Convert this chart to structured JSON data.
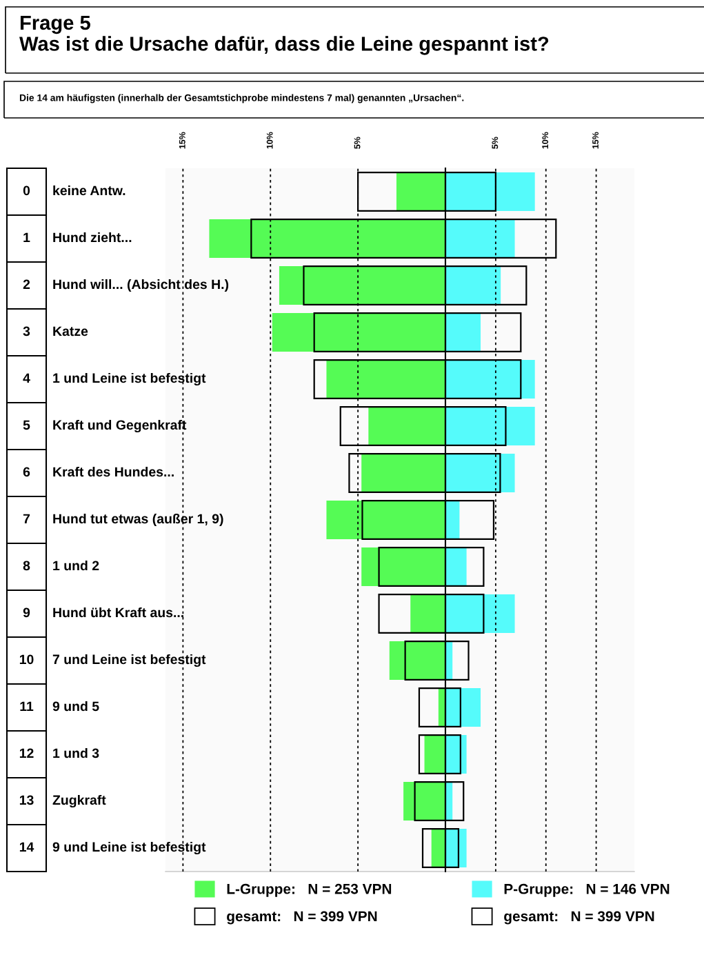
{
  "chart_data": [
    {
      "type": "bar",
      "orientation": "horizontal",
      "title": "Frage 5\nWas ist die Ursache dafür, dass die Leine gespannt ist?",
      "subtitle": "Die 14 am häufigsten (innerhalb der Gesamtstichprobe mindestens 7 mal) genannten „Ursachen“.",
      "categories": [
        "0 keine Antw.",
        "1 Hund zieht...",
        "2 Hund will... (Absicht des H.)",
        "3 Katze",
        "4 1 und Leine ist befestigt",
        "5 Kraft und Gegenkraft",
        "6 Kraft des Hundes...",
        "7 Hund tut etwas (außer 1, 9)",
        "8 1 und 2",
        "9 Hund übt Kraft aus...",
        "10 7 und Leine ist befestigt",
        "11 9 und 5",
        "12 1 und 3",
        "13 Zugkraft",
        "14 9 und Leine ist befestigt"
      ],
      "series": [
        {
          "name": "L-Gruppe:   N = 253 VPN",
          "color": "#55fb55",
          "values": [
            2.8,
            13.5,
            9.5,
            9.9,
            6.8,
            4.4,
            4.8,
            6.8,
            4.8,
            2.0,
            3.2,
            0.4,
            1.2,
            2.4,
            0.8
          ]
        },
        {
          "name": "gesamt:   N = 399 VPN",
          "color": "#000000",
          "values": [
            5.0,
            11.1,
            8.1,
            7.5,
            7.5,
            6.0,
            5.5,
            4.75,
            3.8,
            3.8,
            2.3,
            1.5,
            1.5,
            1.75,
            1.3
          ]
        }
      ],
      "xlim": [
        16,
        0
      ],
      "xticks": [
        {
          "value": 15,
          "label": "15%"
        },
        {
          "value": 10,
          "label": "10%"
        },
        {
          "value": 5,
          "label": "5%"
        }
      ],
      "grid": "x",
      "legend": "bottom"
    },
    {
      "type": "bar",
      "orientation": "horizontal",
      "categories": [
        null,
        null,
        null,
        null,
        null,
        null,
        null,
        null,
        null,
        null,
        null,
        null,
        null,
        null,
        null
      ],
      "series": [
        {
          "name": "P-Gruppe:   N = 146 VPN",
          "color": "#55fbfb",
          "values": [
            8.9,
            6.9,
            5.5,
            3.5,
            8.9,
            8.9,
            6.9,
            1.4,
            2.1,
            6.9,
            0.7,
            3.5,
            2.1,
            0.7,
            2.1
          ]
        },
        {
          "name": "gesamt:   N = 399 VPN",
          "color": "#000000",
          "values": [
            5.0,
            11.0,
            8.05,
            7.5,
            7.5,
            6.0,
            5.45,
            4.8,
            3.8,
            3.8,
            2.3,
            1.5,
            1.5,
            1.8,
            1.3
          ]
        }
      ],
      "xlim": [
        0,
        18.8
      ],
      "xticks": [
        {
          "value": 5,
          "label": "5%"
        },
        {
          "value": 10,
          "label": "10%"
        },
        {
          "value": 15,
          "label": "15%"
        }
      ],
      "grid": "x",
      "legend": "bottom",
      "tick_labels": "x"
    }
  ]
}
